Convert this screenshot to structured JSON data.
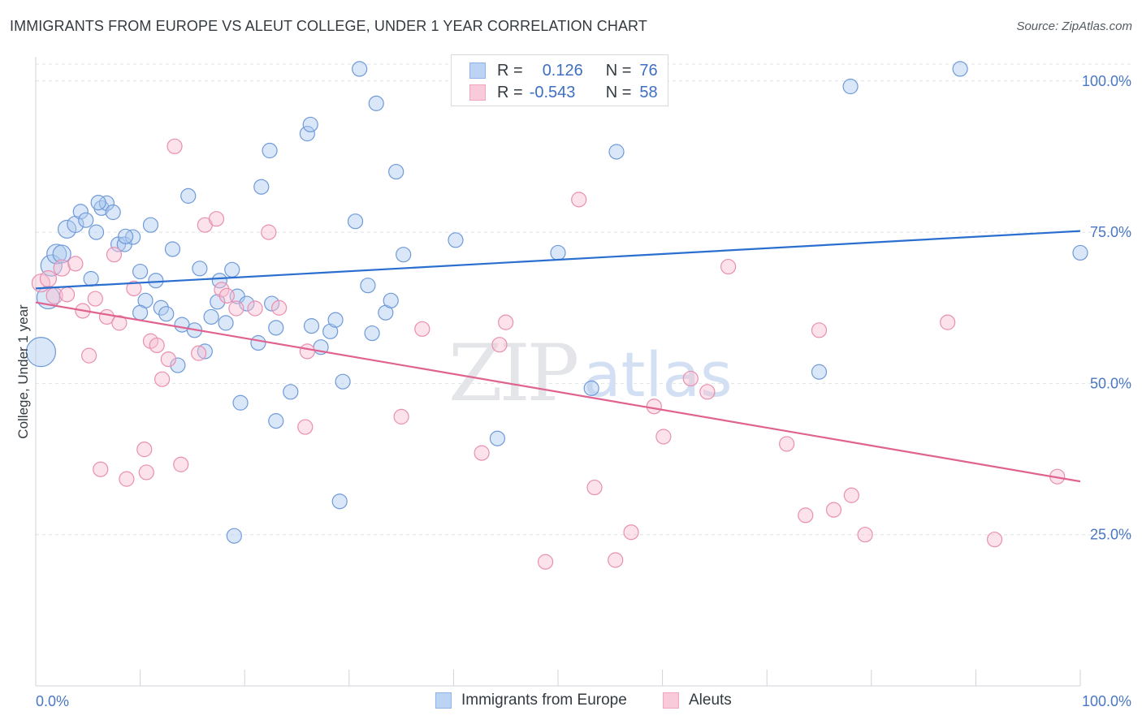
{
  "header": {
    "title": "IMMIGRANTS FROM EUROPE VS ALEUT COLLEGE, UNDER 1 YEAR CORRELATION CHART",
    "source": "Source: ZipAtlas.com"
  },
  "watermark": {
    "zip": "ZIP",
    "atlas": "atlas"
  },
  "legend": {
    "rows": [
      {
        "r_label": "R =",
        "r_value": "0.126",
        "n_label": "N =",
        "n_value": "76",
        "color": "#8fb4e8"
      },
      {
        "r_label": "R =",
        "r_value": "-0.543",
        "n_label": "N =",
        "n_value": "58",
        "color": "#f2a7c0"
      }
    ]
  },
  "bottom_legend": {
    "items": [
      {
        "label": "Immigrants from Europe",
        "color": "#8fb4e8"
      },
      {
        "label": "Aleuts",
        "color": "#f2a7c0"
      }
    ]
  },
  "chart_data": {
    "type": "scatter",
    "title": "IMMIGRANTS FROM EUROPE VS ALEUT COLLEGE, UNDER 1 YEAR CORRELATION CHART",
    "xlabel": "",
    "ylabel": "College, Under 1 year",
    "xlim": [
      0,
      100
    ],
    "ylim": [
      0,
      104
    ],
    "x_tick_labels": [
      "0.0%",
      "100.0%"
    ],
    "y_ticks": [
      25,
      50,
      75,
      100
    ],
    "y_tick_labels": [
      "25.0%",
      "50.0%",
      "75.0%",
      "100.0%"
    ],
    "grid": "horizontal dashed",
    "legend_placement": "top-center",
    "colors": {
      "europe": "#5b8fd6",
      "aleuts": "#e67ca3",
      "europe_line": "#2a6fcf",
      "aleuts_line": "#e0628f"
    },
    "series": [
      {
        "name": "Immigrants from Europe",
        "trend": [
          [
            0,
            65.7
          ],
          [
            100,
            75.2
          ]
        ],
        "points": [
          [
            0.5,
            55.2,
            18
          ],
          [
            1.2,
            64.2,
            14
          ],
          [
            1.5,
            69.5,
            13
          ],
          [
            2,
            71.4,
            12
          ],
          [
            2.5,
            71.4,
            11
          ],
          [
            3,
            75.5,
            11
          ],
          [
            3.8,
            76.3,
            10
          ],
          [
            4.3,
            78.4,
            9
          ],
          [
            4.8,
            77.0,
            9
          ],
          [
            5.3,
            67.3,
            9
          ],
          [
            5.8,
            75.0,
            9
          ],
          [
            6.3,
            79.0,
            9
          ],
          [
            6.8,
            79.8,
            9
          ],
          [
            7.4,
            78.3,
            9
          ],
          [
            7.9,
            73.0,
            9
          ],
          [
            8.5,
            73.0,
            9
          ],
          [
            9.3,
            74.2,
            9
          ],
          [
            10,
            68.5,
            9
          ],
          [
            10.5,
            63.7,
            9
          ],
          [
            11,
            76.2,
            9
          ],
          [
            11.5,
            67.0,
            9
          ],
          [
            12,
            62.5,
            9
          ],
          [
            12.5,
            61.5,
            9
          ],
          [
            13.1,
            72.2,
            9
          ],
          [
            13.6,
            53.0,
            9
          ],
          [
            14,
            59.7,
            9
          ],
          [
            14.6,
            81.0,
            9
          ],
          [
            15.2,
            58.8,
            9
          ],
          [
            15.7,
            69.0,
            9
          ],
          [
            16.2,
            55.3,
            9
          ],
          [
            16.8,
            61.0,
            9
          ],
          [
            17.4,
            63.5,
            9
          ],
          [
            17.6,
            67.0,
            9
          ],
          [
            18.2,
            60.0,
            9
          ],
          [
            18.8,
            68.8,
            9
          ],
          [
            19.3,
            64.4,
            9
          ],
          [
            19.6,
            46.8,
            9
          ],
          [
            20.2,
            63.2,
            9
          ],
          [
            21.3,
            56.7,
            9
          ],
          [
            21.6,
            82.5,
            9
          ],
          [
            22.4,
            88.5,
            9
          ],
          [
            22.6,
            63.2,
            9
          ],
          [
            23.0,
            59.2,
            9
          ],
          [
            24.4,
            48.6,
            9
          ],
          [
            26.0,
            91.3,
            9
          ],
          [
            26.3,
            92.8,
            9
          ],
          [
            26.4,
            59.5,
            9
          ],
          [
            27.3,
            56.0,
            9
          ],
          [
            28.2,
            58.6,
            9
          ],
          [
            28.7,
            60.5,
            9
          ],
          [
            29.1,
            30.5,
            9
          ],
          [
            29.4,
            50.3,
            9
          ],
          [
            30.6,
            76.8,
            9
          ],
          [
            31.0,
            102.0,
            9
          ],
          [
            31.8,
            66.2,
            9
          ],
          [
            32.2,
            58.3,
            9
          ],
          [
            32.6,
            96.3,
            9
          ],
          [
            33.5,
            61.7,
            9
          ],
          [
            34.0,
            63.7,
            9
          ],
          [
            34.5,
            85.0,
            9
          ],
          [
            35.2,
            71.3,
            9
          ],
          [
            40.2,
            73.7,
            9
          ],
          [
            44.2,
            40.9,
            9
          ],
          [
            47.6,
            102.5,
            9
          ],
          [
            50,
            71.6,
            9
          ],
          [
            53.2,
            49.2,
            9
          ],
          [
            55.6,
            88.3,
            9
          ],
          [
            75.0,
            51.9,
            9
          ],
          [
            78.0,
            99.1,
            9
          ],
          [
            88.5,
            102.0,
            9
          ],
          [
            100,
            71.6,
            9
          ],
          [
            19.0,
            24.8,
            9
          ],
          [
            23.0,
            43.8,
            9
          ],
          [
            10,
            61.7,
            9
          ],
          [
            8.6,
            74.3,
            9
          ],
          [
            6.0,
            79.9,
            9
          ]
        ]
      },
      {
        "name": "Aleuts",
        "trend": [
          [
            0,
            63.4
          ],
          [
            100,
            33.8
          ]
        ],
        "points": [
          [
            0.5,
            66.6,
            11
          ],
          [
            1.2,
            67.3,
            10
          ],
          [
            1.8,
            64.5,
            10
          ],
          [
            2.5,
            69.1,
            10
          ],
          [
            3.0,
            64.7,
            9
          ],
          [
            3.8,
            69.8,
            9
          ],
          [
            4.5,
            62.0,
            9
          ],
          [
            5.1,
            54.6,
            9
          ],
          [
            5.7,
            64.0,
            9
          ],
          [
            6.2,
            35.8,
            9
          ],
          [
            6.8,
            61.0,
            9
          ],
          [
            7.5,
            71.3,
            9
          ],
          [
            8.0,
            60.0,
            9
          ],
          [
            8.7,
            34.2,
            9
          ],
          [
            9.4,
            65.7,
            9
          ],
          [
            10.4,
            39.1,
            9
          ],
          [
            10.6,
            35.3,
            9
          ],
          [
            11.0,
            57.0,
            9
          ],
          [
            11.6,
            56.3,
            9
          ],
          [
            12.1,
            50.7,
            9
          ],
          [
            12.7,
            54.0,
            9
          ],
          [
            13.3,
            89.2,
            9
          ],
          [
            13.9,
            36.6,
            9
          ],
          [
            15.6,
            55.0,
            9
          ],
          [
            16.2,
            76.2,
            9
          ],
          [
            17.3,
            77.2,
            9
          ],
          [
            17.8,
            65.5,
            9
          ],
          [
            18.3,
            64.5,
            9
          ],
          [
            19.2,
            62.4,
            9
          ],
          [
            21.0,
            62.4,
            9
          ],
          [
            22.3,
            75.0,
            9
          ],
          [
            23.3,
            62.5,
            9
          ],
          [
            25.8,
            42.8,
            9
          ],
          [
            26.0,
            55.3,
            9
          ],
          [
            35.0,
            44.5,
            9
          ],
          [
            37.0,
            59.0,
            9
          ],
          [
            42.7,
            38.5,
            9
          ],
          [
            44.4,
            56.4,
            9
          ],
          [
            45.0,
            60.1,
            9
          ],
          [
            48.8,
            20.5,
            9
          ],
          [
            52.0,
            80.4,
            9
          ],
          [
            53.5,
            32.8,
            9
          ],
          [
            55.5,
            20.8,
            9
          ],
          [
            59.2,
            46.2,
            9
          ],
          [
            60.1,
            41.2,
            9
          ],
          [
            62.7,
            50.8,
            9
          ],
          [
            64.3,
            48.6,
            9
          ],
          [
            66.3,
            69.3,
            9
          ],
          [
            71.9,
            40.0,
            9
          ],
          [
            73.7,
            28.2,
            9
          ],
          [
            75.0,
            58.8,
            9
          ],
          [
            76.4,
            29.1,
            9
          ],
          [
            78.1,
            31.5,
            9
          ],
          [
            79.4,
            25.0,
            9
          ],
          [
            87.3,
            60.1,
            9
          ],
          [
            91.8,
            24.2,
            9
          ],
          [
            97.8,
            34.6,
            9
          ],
          [
            57.0,
            25.4,
            9
          ]
        ]
      }
    ]
  }
}
